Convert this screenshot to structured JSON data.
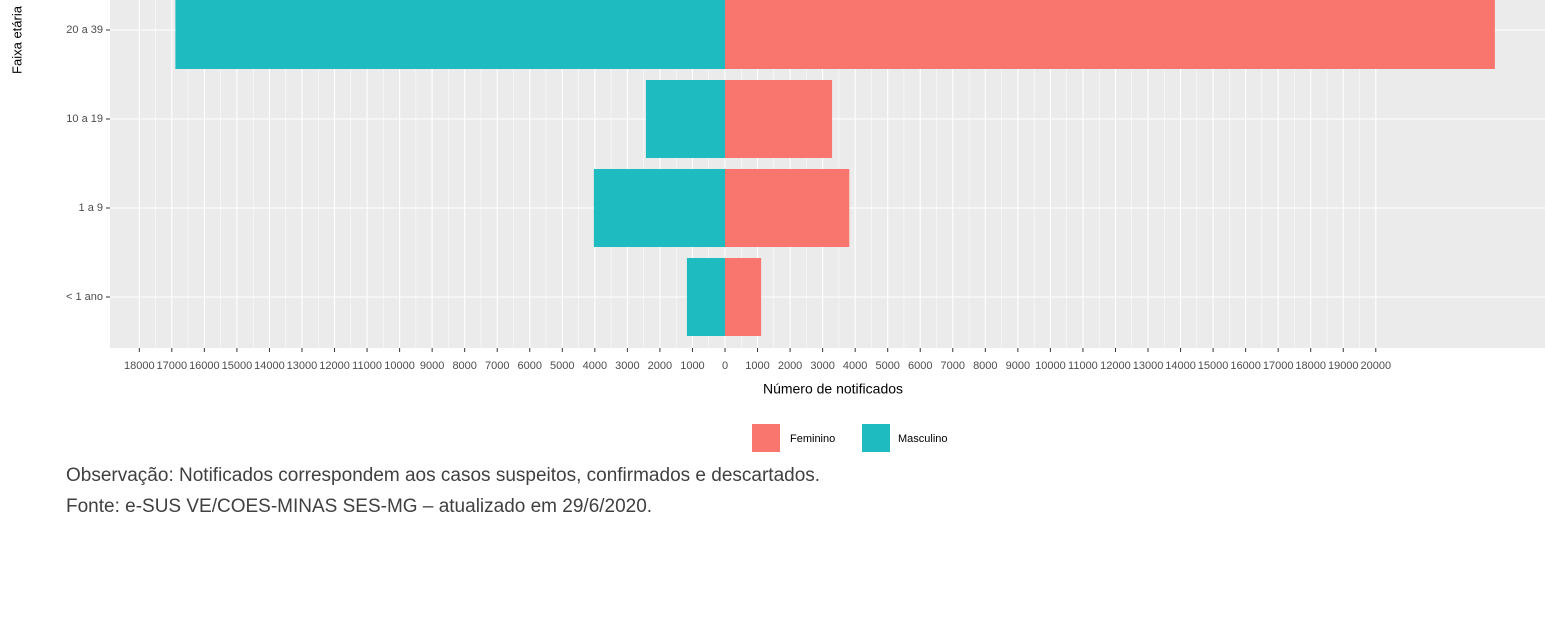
{
  "chart_data": {
    "type": "pyramid",
    "y_axis_label": "Faixa etária",
    "x_axis_label": "Número de notificados",
    "categories": [
      "< 1 ano",
      "1 a 9",
      "10 a 19",
      "20 a 39"
    ],
    "series": [
      {
        "name": "Feminino",
        "color": "#F8766D",
        "values": [
          1110,
          3820,
          3290,
          23660
        ]
      },
      {
        "name": "Masculino",
        "color": "#1EBCC0",
        "values": [
          -1170,
          -4030,
          -2430,
          -16890
        ]
      }
    ],
    "xlim": [
      -18900,
      25200
    ],
    "xticks": [
      {
        "value": -18000,
        "label": "18000"
      },
      {
        "value": -17000,
        "label": "17000"
      },
      {
        "value": -16000,
        "label": "16000"
      },
      {
        "value": -15000,
        "label": "15000"
      },
      {
        "value": -14000,
        "label": "14000"
      },
      {
        "value": -13000,
        "label": "13000"
      },
      {
        "value": -12000,
        "label": "12000"
      },
      {
        "value": -11000,
        "label": "11000"
      },
      {
        "value": -10000,
        "label": "10000"
      },
      {
        "value": -9000,
        "label": "9000"
      },
      {
        "value": -8000,
        "label": "8000"
      },
      {
        "value": -7000,
        "label": "7000"
      },
      {
        "value": -6000,
        "label": "6000"
      },
      {
        "value": -5000,
        "label": "5000"
      },
      {
        "value": -4000,
        "label": "4000"
      },
      {
        "value": -3000,
        "label": "3000"
      },
      {
        "value": -2000,
        "label": "2000"
      },
      {
        "value": -1000,
        "label": "1000"
      },
      0,
      1000,
      2000,
      3000,
      4000,
      5000,
      6000,
      7000,
      8000,
      9000,
      10000,
      11000,
      12000,
      13000,
      14000,
      15000,
      16000,
      17000,
      18000,
      19000,
      20000
    ],
    "grid": true,
    "notes": [
      "Observação: Notificados correspondem aos casos suspeitos, confirmados e descartados.",
      "Fonte: e-SUS VE/COES-MINAS SES-MG – atualizado em 29/6/2020."
    ]
  }
}
